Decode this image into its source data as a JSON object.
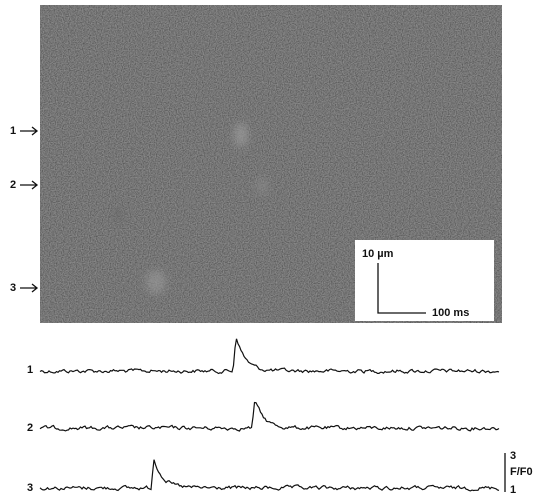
{
  "image": {
    "row_labels": [
      "1",
      "2",
      "3"
    ],
    "scale_bar": {
      "length_label": "10 µm",
      "time_label": "100 ms"
    }
  },
  "traces": {
    "labels": [
      "1",
      "2",
      "3"
    ],
    "scale": {
      "top": "3",
      "unit": "F/F0",
      "bottom": "1"
    }
  }
}
